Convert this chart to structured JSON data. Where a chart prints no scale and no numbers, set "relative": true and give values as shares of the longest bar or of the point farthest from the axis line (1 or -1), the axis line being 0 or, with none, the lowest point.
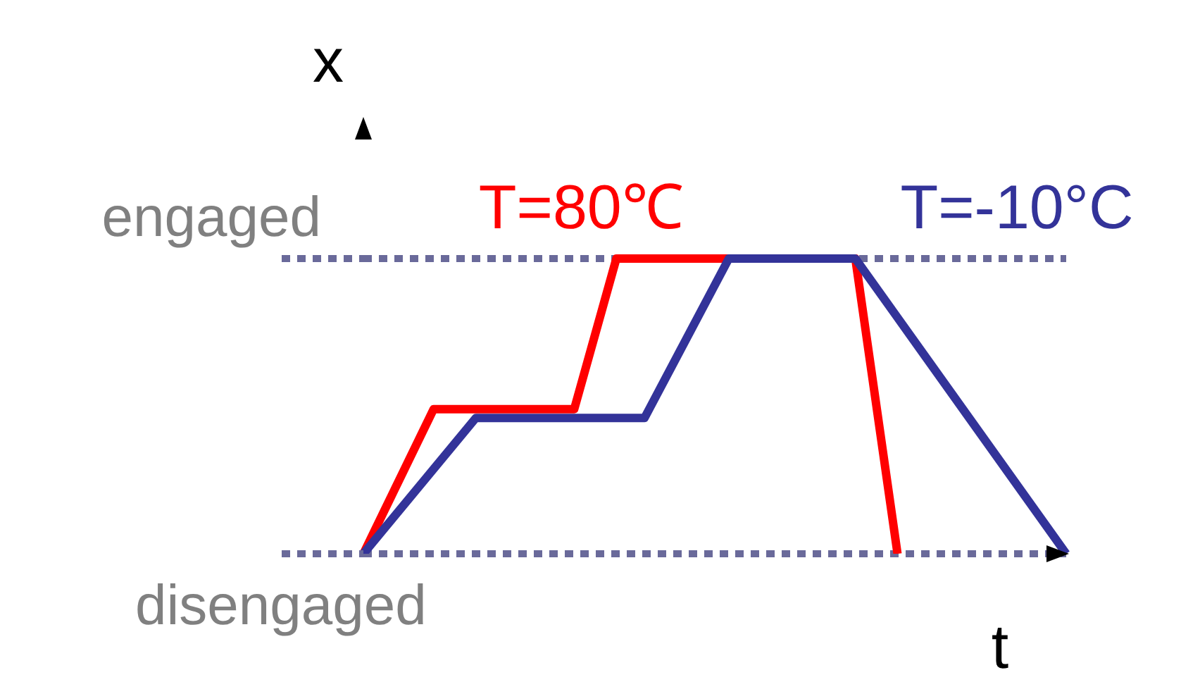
{
  "chart_data": {
    "type": "line",
    "xlabel": "t",
    "ylabel": "x",
    "marker": "none",
    "line_style": "solid",
    "categories": [
      null,
      null,
      null,
      null,
      null,
      null,
      null,
      null,
      null,
      null,
      null,
      null,
      null,
      null,
      null,
      null,
      null,
      null,
      null,
      null,
      null,
      null,
      null,
      null,
      null,
      null,
      null,
      null,
      null,
      null,
      null,
      null,
      null,
      null,
      null,
      null,
      null,
      null,
      null,
      null,
      null,
      null,
      null,
      null,
      null,
      null,
      null,
      null,
      null,
      null,
      null
    ],
    "relative": true,
    "series": [
      {
        "name": "T=80℃",
        "color": "#ff0000",
        "values": [
          0,
          null,
          null,
          null,
          null,
          0.49,
          null,
          null,
          null,
          null,
          null,
          null,
          null,
          null,
          null,
          0.49,
          null,
          null,
          1,
          null,
          null,
          null,
          null,
          null,
          null,
          null,
          null,
          null,
          null,
          null,
          null,
          null,
          null,
          null,
          null,
          1,
          null,
          null,
          0,
          null,
          null,
          null,
          null,
          null,
          null,
          null,
          null,
          null,
          null,
          null,
          null
        ]
      },
      {
        "name": "T=-10°C",
        "color": "#333399",
        "values": [
          0,
          null,
          null,
          null,
          null,
          null,
          null,
          null,
          0.46,
          null,
          null,
          null,
          null,
          null,
          null,
          null,
          null,
          null,
          null,
          null,
          0.46,
          null,
          null,
          null,
          null,
          null,
          1,
          null,
          null,
          null,
          null,
          null,
          null,
          null,
          null,
          1,
          null,
          null,
          null,
          null,
          null,
          null,
          null,
          null,
          null,
          null,
          null,
          null,
          null,
          null,
          0
        ]
      }
    ],
    "ref_lines": [
      {
        "axis": "y",
        "value": 1,
        "label": "engaged",
        "color": "#6a6a9a",
        "line_style": "dotted"
      },
      {
        "axis": "y",
        "value": 0,
        "label": "disengaged",
        "color": "#6a6a9a",
        "line_style": "dotted"
      }
    ]
  }
}
